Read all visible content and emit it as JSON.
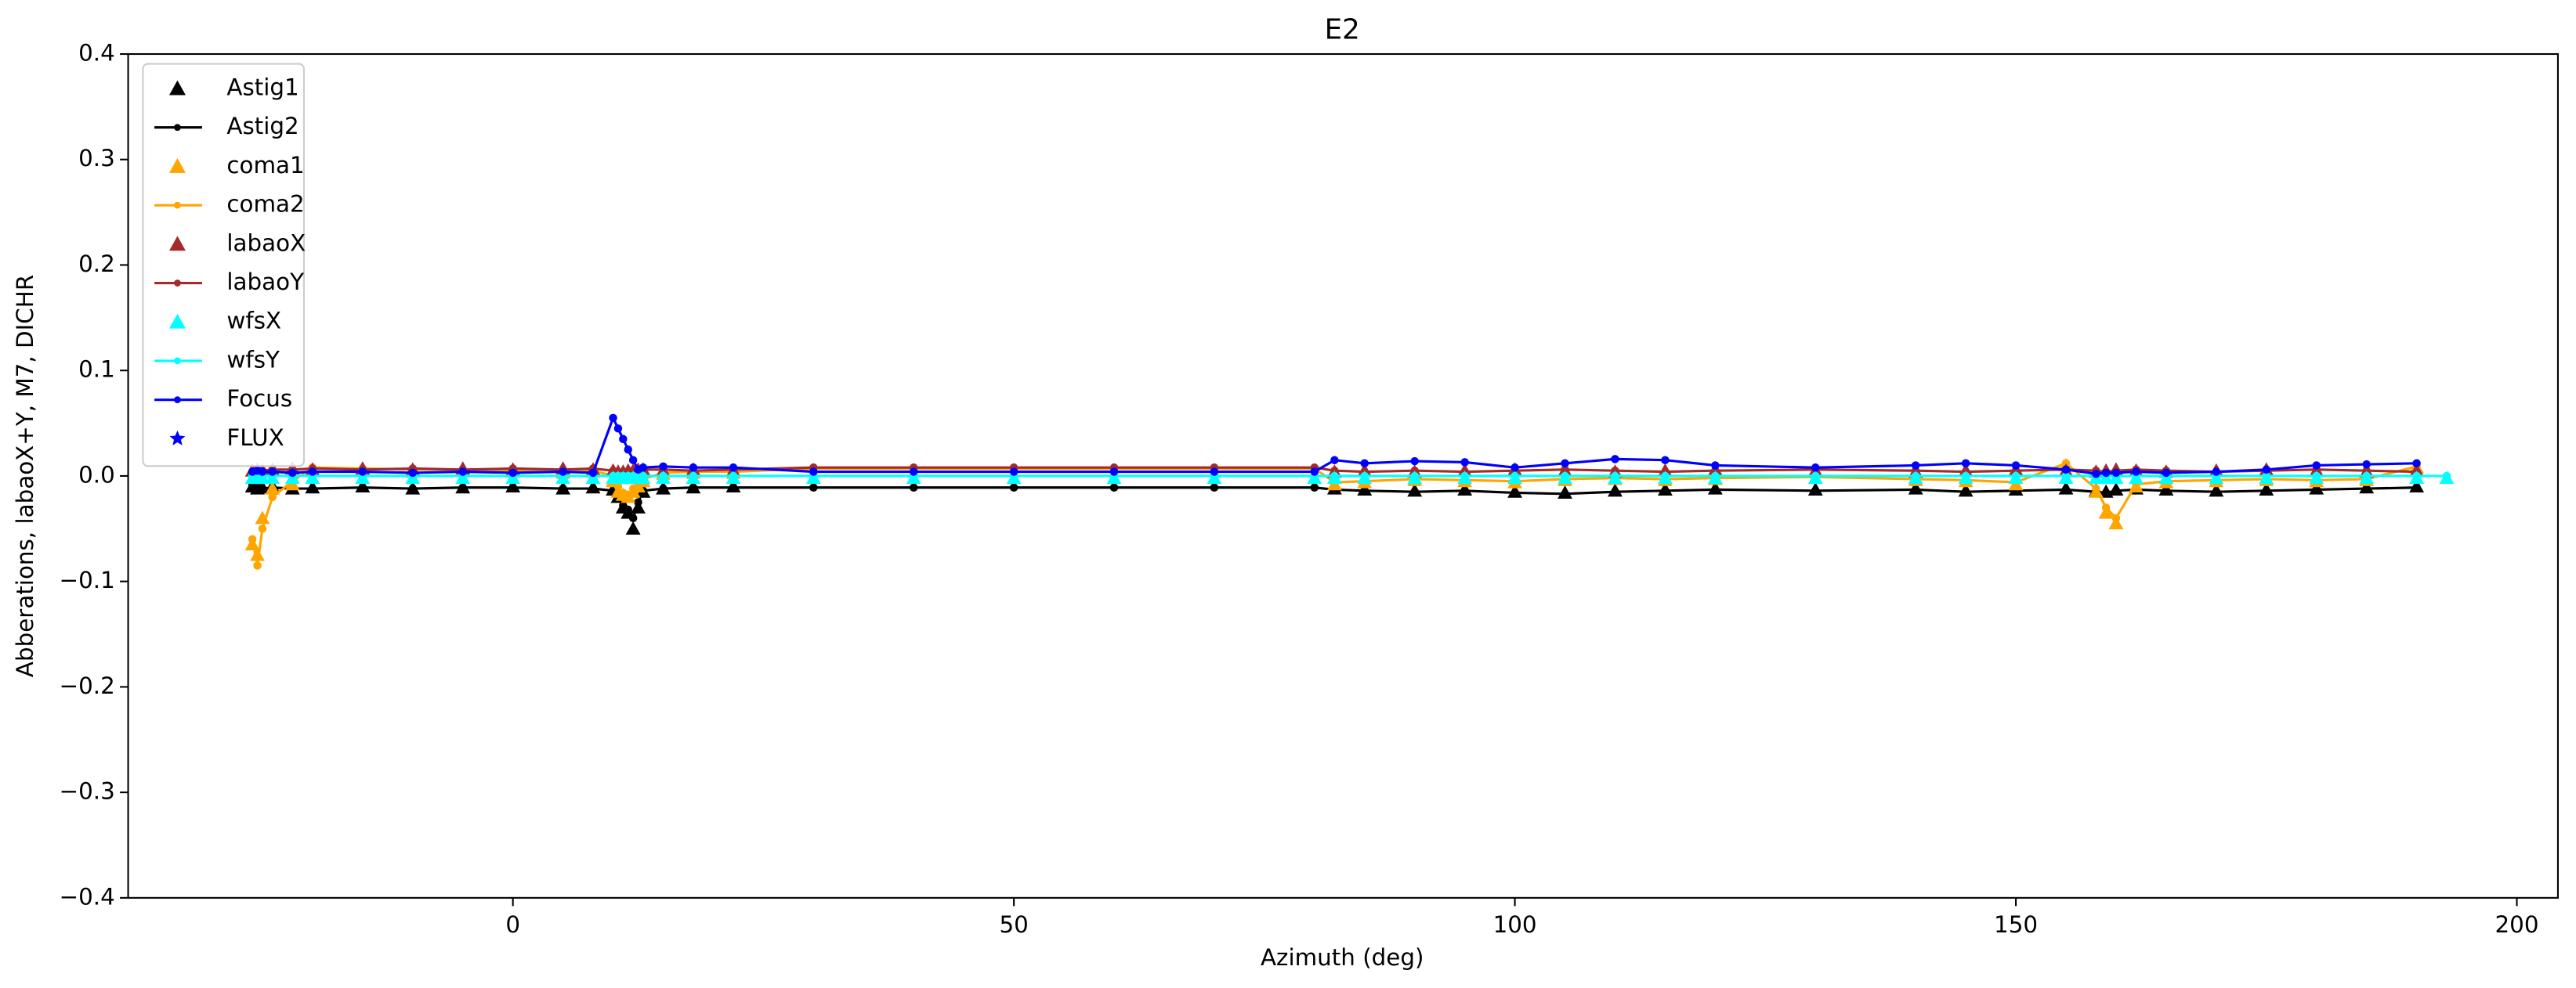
{
  "chart_data": {
    "type": "line",
    "title": "E2",
    "xlabel": "Azimuth (deg)",
    "ylabel": "Abberations, labaoX+Y, M7, DICHR",
    "xlim": [
      -38.4,
      204.1
    ],
    "ylim": [
      -0.4,
      0.4
    ],
    "xticks": [
      0,
      50,
      100,
      150,
      200
    ],
    "yticks": [
      {
        "value": -0.4,
        "label": "−0.4"
      },
      {
        "value": -0.3,
        "label": "−0.3"
      },
      {
        "value": -0.2,
        "label": "−0.2"
      },
      {
        "value": -0.1,
        "label": "−0.1"
      },
      {
        "value": 0,
        "label": "0.0"
      },
      0.1,
      0.2,
      0.3,
      0.4
    ],
    "legend": "upper left",
    "x": [
      -26,
      -25.5,
      -25,
      -24,
      -22,
      -20,
      -15,
      -10,
      -5,
      0,
      5,
      8,
      10,
      10.5,
      11,
      11.5,
      12,
      12.5,
      13,
      15,
      18,
      22,
      30,
      40,
      50,
      60,
      70,
      80,
      82,
      85,
      90,
      95,
      100,
      105,
      110,
      115,
      120,
      130,
      140,
      145,
      150,
      155,
      158,
      159,
      160,
      162,
      165,
      170,
      175,
      180,
      185,
      190,
      193
    ],
    "series": [
      {
        "name": "Astig1",
        "color": "#000000",
        "marker": "triangle",
        "line": false,
        "values": [
          -0.01,
          -0.012,
          -0.011,
          -0.01,
          -0.012,
          -0.011,
          -0.01,
          -0.012,
          -0.011,
          -0.01,
          -0.012,
          -0.011,
          -0.013,
          -0.02,
          -0.03,
          -0.035,
          -0.05,
          -0.03,
          -0.015,
          -0.012,
          -0.011,
          -0.01,
          null,
          null,
          null,
          null,
          null,
          null,
          -0.012,
          -0.013,
          -0.014,
          -0.013,
          -0.015,
          -0.016,
          -0.014,
          -0.013,
          -0.012,
          -0.013,
          -0.012,
          -0.014,
          -0.013,
          -0.012,
          -0.014,
          -0.015,
          -0.013,
          -0.012,
          -0.013,
          -0.014,
          -0.013,
          -0.012,
          -0.011,
          -0.01,
          null
        ]
      },
      {
        "name": "Astig2",
        "color": "#000000",
        "marker": "circle",
        "line": true,
        "values": [
          -0.008,
          -0.01,
          -0.012,
          -0.011,
          -0.012,
          -0.012,
          -0.011,
          -0.012,
          -0.011,
          -0.011,
          -0.012,
          -0.012,
          -0.014,
          -0.02,
          -0.028,
          -0.032,
          -0.04,
          -0.025,
          -0.014,
          -0.012,
          -0.011,
          -0.011,
          -0.011,
          -0.011,
          -0.011,
          -0.011,
          -0.011,
          -0.011,
          -0.013,
          -0.014,
          -0.015,
          -0.014,
          -0.016,
          -0.017,
          -0.015,
          -0.014,
          -0.013,
          -0.014,
          -0.013,
          -0.015,
          -0.014,
          -0.013,
          -0.015,
          -0.016,
          -0.014,
          -0.013,
          -0.014,
          -0.015,
          -0.014,
          -0.013,
          -0.012,
          -0.011,
          null
        ]
      },
      {
        "name": "coma1",
        "color": "#ffa500",
        "marker": "triangle",
        "line": false,
        "values": [
          -0.065,
          -0.075,
          -0.04,
          -0.012,
          -0.008,
          0.005,
          0.006,
          0.004,
          0.005,
          0.004,
          0.003,
          0.004,
          -0.005,
          -0.015,
          -0.018,
          -0.02,
          -0.015,
          -0.01,
          -0.005,
          0.002,
          0.003,
          0.003,
          null,
          null,
          null,
          null,
          null,
          null,
          -0.008,
          -0.006,
          -0.004,
          -0.005,
          -0.006,
          -0.004,
          -0.003,
          -0.004,
          -0.003,
          -0.002,
          -0.004,
          -0.005,
          -0.008,
          0.01,
          -0.015,
          -0.035,
          -0.045,
          -0.01,
          -0.006,
          -0.005,
          -0.004,
          -0.005,
          -0.004,
          0.008,
          null
        ]
      },
      {
        "name": "coma2",
        "color": "#ffa500",
        "marker": "circle",
        "line": true,
        "values": [
          -0.06,
          -0.085,
          -0.05,
          -0.02,
          -0.005,
          0.008,
          0.007,
          0.006,
          0.006,
          0.005,
          0.004,
          0.005,
          0.0,
          -0.01,
          -0.016,
          -0.018,
          -0.012,
          -0.008,
          -0.003,
          0.003,
          0.004,
          0.004,
          0.007,
          0.007,
          0.007,
          0.007,
          0.007,
          0.007,
          -0.006,
          -0.005,
          -0.003,
          -0.004,
          -0.005,
          -0.003,
          -0.002,
          -0.003,
          -0.002,
          -0.001,
          -0.003,
          -0.004,
          -0.006,
          0.012,
          -0.012,
          -0.03,
          -0.04,
          -0.008,
          -0.005,
          -0.004,
          -0.003,
          -0.004,
          -0.003,
          0.009,
          null
        ]
      },
      {
        "name": "labaoX",
        "color": "#a52a2a",
        "marker": "triangle",
        "line": false,
        "values": [
          0.005,
          0.006,
          0.005,
          0.006,
          0.007,
          0.006,
          0.007,
          0.006,
          0.007,
          0.006,
          0.007,
          0.006,
          0.005,
          0.004,
          0.004,
          0.005,
          0.005,
          0.006,
          0.006,
          0.005,
          0.006,
          0.005,
          null,
          null,
          null,
          null,
          null,
          null,
          0.004,
          0.005,
          0.004,
          0.005,
          0.006,
          0.005,
          0.004,
          0.005,
          0.006,
          0.005,
          0.004,
          0.005,
          0.006,
          0.005,
          0.004,
          0.005,
          0.006,
          0.005,
          0.004,
          0.005,
          0.006,
          0.005,
          0.004,
          0.005,
          null
        ]
      },
      {
        "name": "labaoY",
        "color": "#a52a2a",
        "marker": "circle",
        "line": true,
        "values": [
          0.004,
          0.005,
          0.005,
          0.006,
          0.006,
          0.007,
          0.006,
          0.007,
          0.006,
          0.007,
          0.006,
          0.007,
          0.005,
          0.004,
          0.004,
          0.004,
          0.005,
          0.005,
          0.006,
          0.006,
          0.005,
          0.006,
          0.008,
          0.008,
          0.008,
          0.008,
          0.008,
          0.008,
          0.005,
          0.004,
          0.005,
          0.004,
          0.005,
          0.006,
          0.005,
          0.004,
          0.005,
          0.006,
          0.005,
          0.004,
          0.005,
          0.006,
          0.005,
          0.004,
          0.005,
          0.006,
          0.005,
          0.004,
          0.005,
          0.006,
          0.005,
          0.004,
          null
        ]
      },
      {
        "name": "wfsX",
        "color": "#00ffff",
        "marker": "triangle",
        "line": false,
        "values": [
          -0.002,
          -0.002,
          -0.002,
          -0.002,
          -0.002,
          -0.002,
          -0.002,
          -0.002,
          -0.002,
          -0.002,
          -0.002,
          -0.002,
          -0.002,
          -0.002,
          -0.002,
          -0.002,
          -0.002,
          -0.002,
          -0.002,
          -0.002,
          -0.002,
          -0.002,
          -0.002,
          -0.002,
          -0.002,
          -0.002,
          -0.002,
          -0.002,
          -0.002,
          -0.002,
          -0.002,
          -0.002,
          -0.002,
          -0.002,
          -0.002,
          -0.002,
          -0.002,
          -0.002,
          -0.002,
          -0.002,
          -0.002,
          -0.002,
          -0.002,
          -0.002,
          -0.002,
          -0.002,
          -0.002,
          -0.002,
          -0.002,
          -0.002,
          -0.002,
          -0.002,
          -0.002
        ]
      },
      {
        "name": "wfsY",
        "color": "#00ffff",
        "marker": "circle",
        "line": true,
        "values": [
          0.0,
          0.0,
          0.0,
          0.0,
          0.0,
          0.0,
          0.0,
          0.0,
          0.0,
          0.0,
          0.0,
          0.0,
          0.0,
          0.0,
          0.0,
          0.0,
          0.0,
          0.0,
          0.0,
          0.0,
          0.0,
          0.0,
          0.0,
          0.0,
          0.0,
          0.0,
          0.0,
          0.0,
          0.0,
          0.0,
          0.0,
          0.0,
          0.0,
          0.0,
          0.0,
          0.0,
          0.0,
          0.0,
          0.0,
          0.0,
          0.0,
          0.0,
          0.0,
          0.0,
          0.0,
          0.0,
          0.0,
          0.0,
          0.0,
          0.0,
          0.0,
          0.0,
          0.0
        ]
      },
      {
        "name": "Focus",
        "color": "#0000ff",
        "marker": "circle",
        "line": true,
        "values": [
          0.004,
          0.005,
          0.004,
          0.004,
          0.003,
          0.004,
          0.004,
          0.003,
          0.004,
          0.003,
          0.004,
          0.003,
          0.055,
          0.045,
          0.035,
          0.025,
          0.015,
          0.006,
          0.008,
          0.009,
          0.008,
          0.008,
          0.004,
          0.004,
          0.004,
          0.004,
          0.004,
          0.004,
          0.015,
          0.012,
          0.014,
          0.013,
          0.008,
          0.012,
          0.016,
          0.015,
          0.01,
          0.008,
          0.01,
          0.012,
          0.01,
          0.006,
          0.002,
          0.003,
          0.003,
          0.004,
          0.003,
          0.004,
          0.006,
          0.01,
          0.011,
          0.012,
          null
        ]
      },
      {
        "name": "FLUX",
        "color": "#0000ff",
        "marker": "star",
        "line": false,
        "values": [
          null,
          null,
          null,
          null,
          null,
          null,
          null,
          null,
          null,
          null,
          null,
          null,
          null,
          null,
          null,
          null,
          null,
          null,
          null,
          null,
          null,
          null,
          null,
          null,
          null,
          null,
          null,
          null,
          null,
          null,
          null,
          null,
          null,
          null,
          null,
          null,
          null,
          null,
          null,
          null,
          null,
          null,
          null,
          null,
          null,
          null,
          null,
          null,
          null,
          null,
          null,
          null,
          null
        ]
      }
    ]
  }
}
